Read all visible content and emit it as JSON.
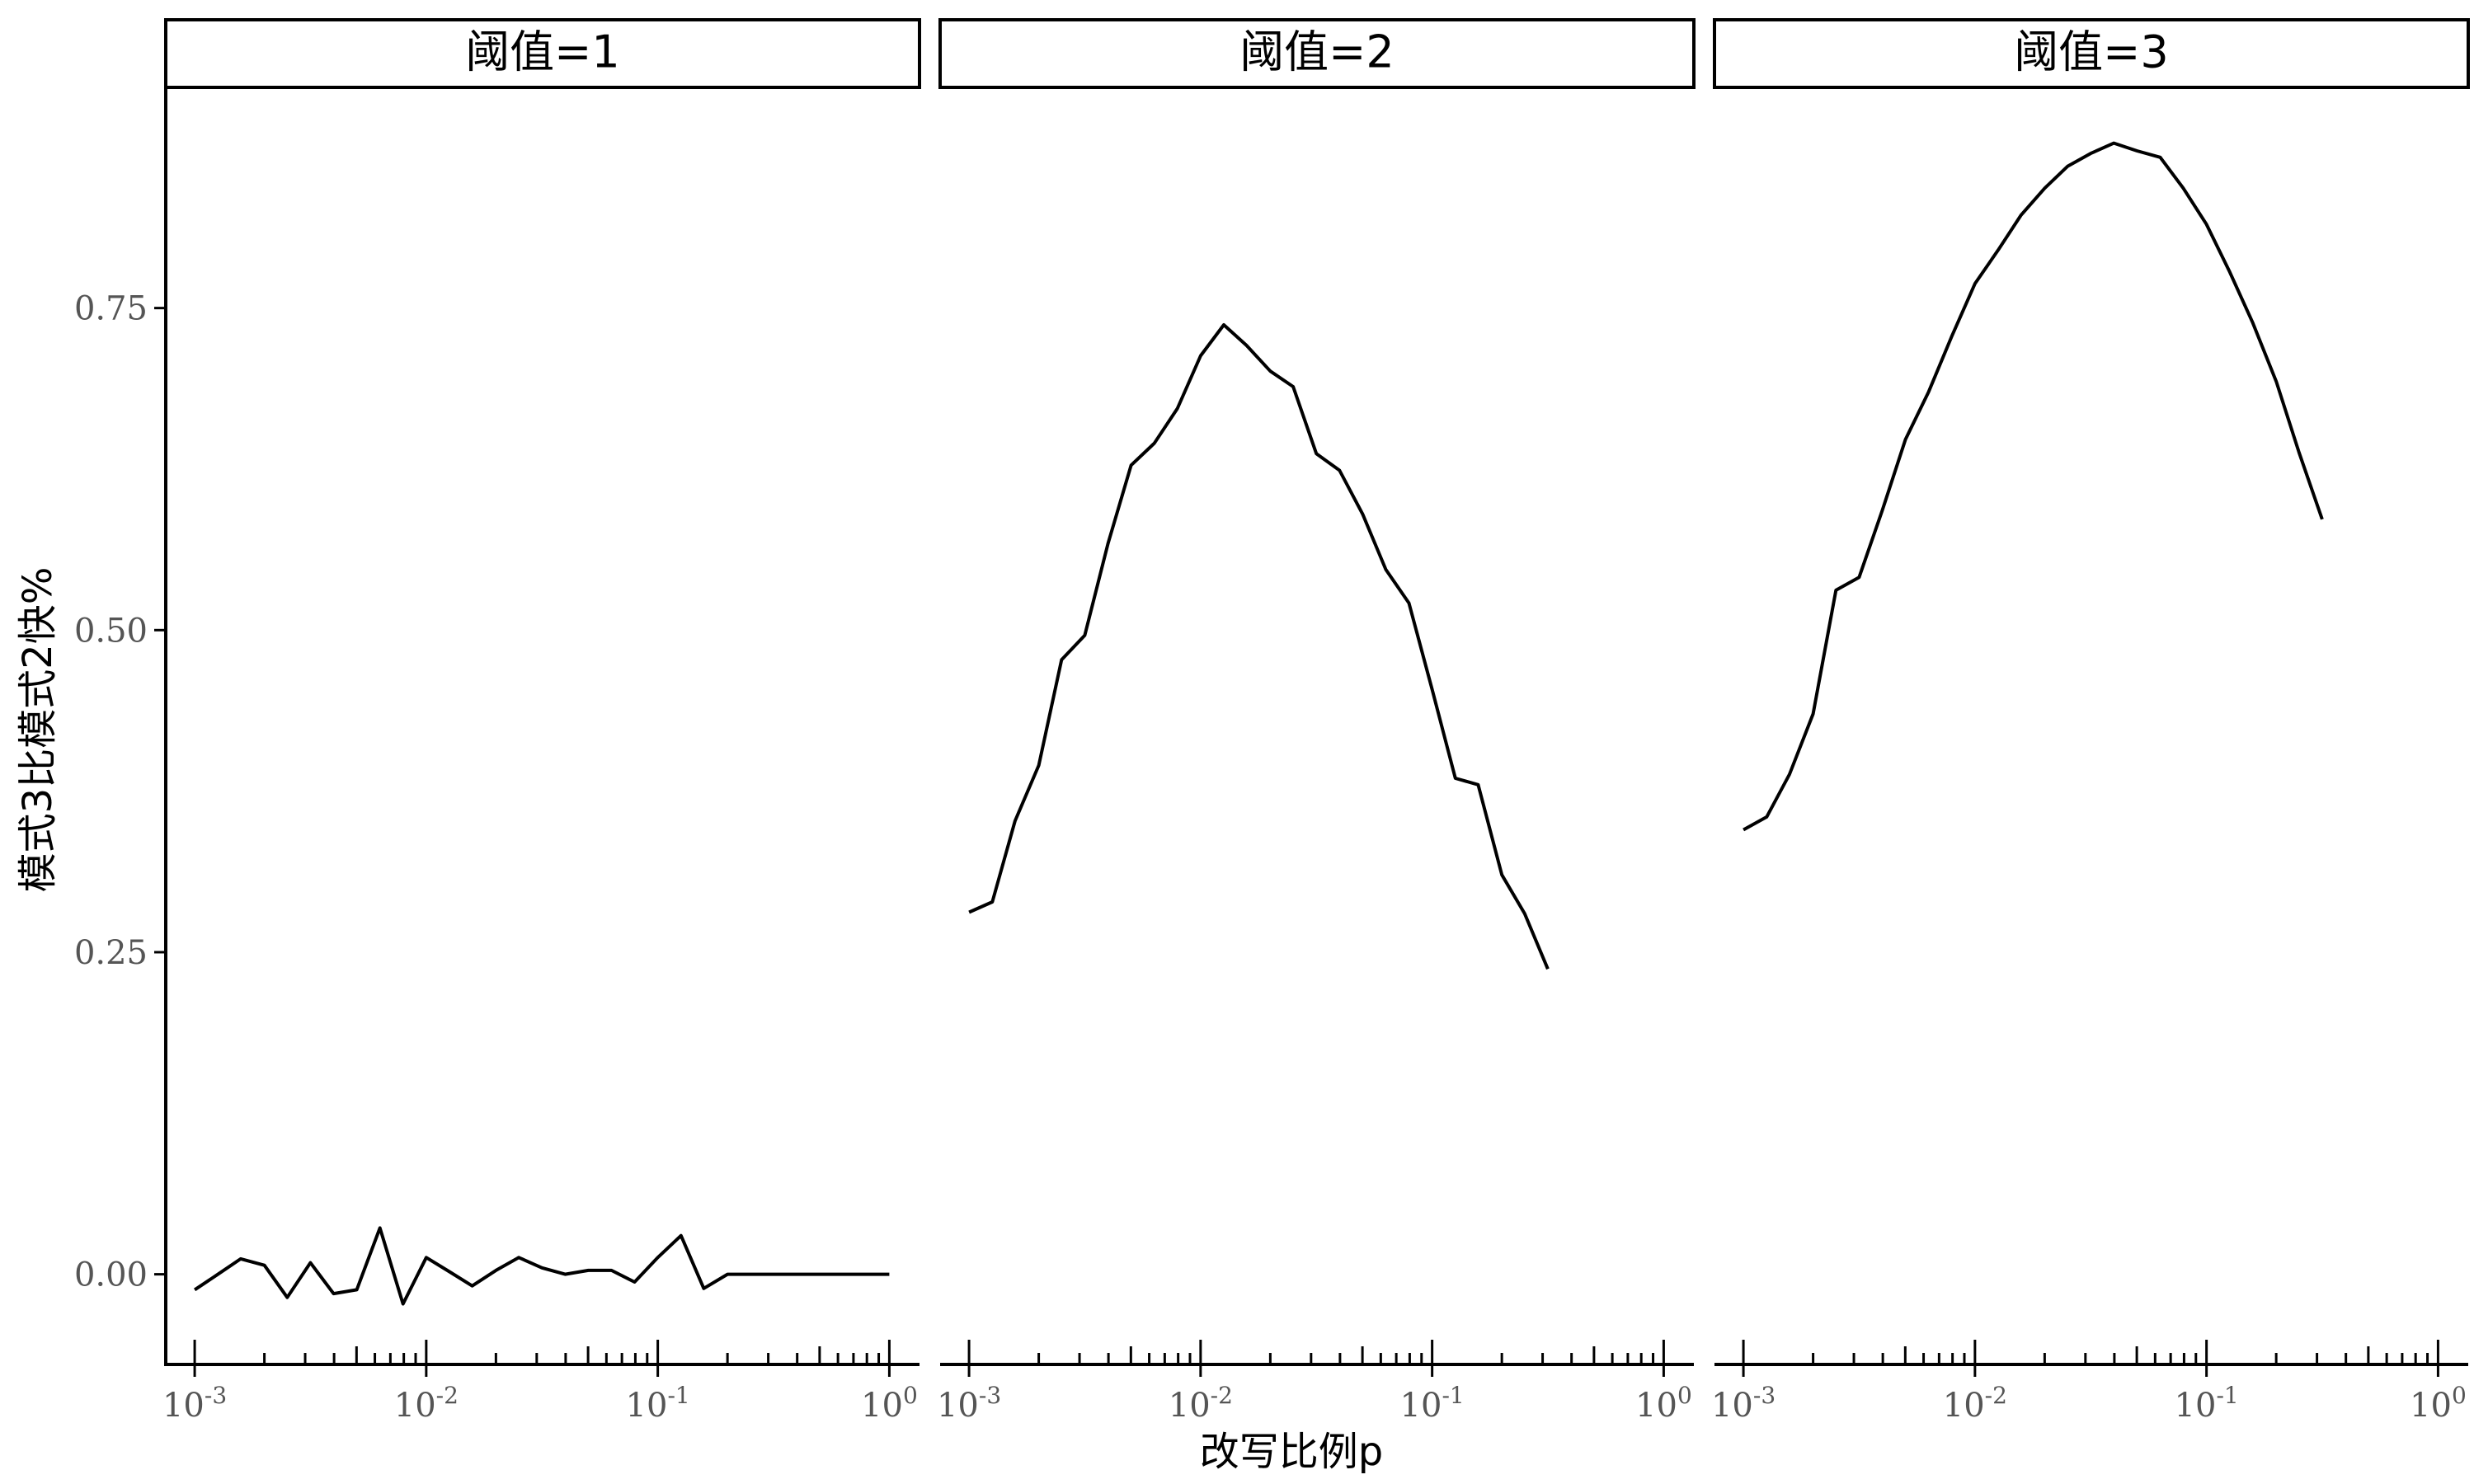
{
  "chart_data": {
    "type": "line",
    "title": "",
    "xlabel": "改写比例p",
    "ylabel": "模式3比模式2快%",
    "x_scale": "log10",
    "xlim": [
      0.00075,
      1.35
    ],
    "ylim": [
      -0.07,
      0.92
    ],
    "x_ticks": [
      0.001,
      0.01,
      0.1,
      1
    ],
    "x_tick_labels": [
      {
        "base": "10",
        "exp": "-3"
      },
      {
        "base": "10",
        "exp": "-2"
      },
      {
        "base": "10",
        "exp": "-1"
      },
      {
        "base": "10",
        "exp": "0"
      }
    ],
    "y_ticks": [
      0,
      0.25,
      0.5,
      0.75
    ],
    "y_tick_labels": [
      "0.00",
      "0.25",
      "0.50",
      "0.75"
    ],
    "grid": false,
    "legend": "none",
    "line_color": "#000000",
    "panels": [
      {
        "strip_label": "阈值=1",
        "x": [
          0.001,
          0.00126,
          0.00158,
          0.002,
          0.00251,
          0.00316,
          0.00398,
          0.00501,
          0.00631,
          0.00794,
          0.01,
          0.0126,
          0.0158,
          0.02,
          0.0251,
          0.0316,
          0.0398,
          0.0501,
          0.0631,
          0.0794,
          0.1,
          0.126,
          0.158,
          0.2,
          0.251,
          0.316,
          0.398,
          0.501,
          0.631,
          0.794,
          1.0
        ],
        "y": [
          -0.012,
          0.0,
          0.012,
          0.007,
          -0.018,
          0.009,
          -0.015,
          -0.012,
          0.036,
          -0.023,
          0.013,
          0.002,
          -0.009,
          0.003,
          0.013,
          0.005,
          0.0,
          0.003,
          0.003,
          -0.006,
          0.013,
          0.03,
          -0.011,
          0.0,
          0.0,
          0.0,
          0.0,
          0.0,
          0.0,
          0.0,
          0.0
        ]
      },
      {
        "strip_label": "阈值=2",
        "x": [
          0.001,
          0.00126,
          0.00158,
          0.002,
          0.00251,
          0.00316,
          0.00398,
          0.00501,
          0.00631,
          0.00794,
          0.01,
          0.0126,
          0.0158,
          0.02,
          0.0251,
          0.0316,
          0.0398,
          0.0501,
          0.0631,
          0.0794,
          0.1,
          0.126,
          0.158,
          0.2,
          0.251,
          0.316
        ],
        "y": [
          0.281,
          0.289,
          0.352,
          0.395,
          0.477,
          0.496,
          0.567,
          0.628,
          0.645,
          0.672,
          0.713,
          0.737,
          0.721,
          0.701,
          0.689,
          0.637,
          0.624,
          0.59,
          0.547,
          0.521,
          0.454,
          0.385,
          0.38,
          0.31,
          0.28,
          0.237
        ]
      },
      {
        "strip_label": "阈值=3",
        "x": [
          0.001,
          0.00126,
          0.00158,
          0.002,
          0.00251,
          0.00316,
          0.00398,
          0.00501,
          0.00631,
          0.00794,
          0.01,
          0.0126,
          0.0158,
          0.02,
          0.0251,
          0.0316,
          0.0398,
          0.0501,
          0.0631,
          0.0794,
          0.1,
          0.126,
          0.158,
          0.2,
          0.251,
          0.316
        ],
        "y": [
          0.345,
          0.355,
          0.388,
          0.435,
          0.531,
          0.541,
          0.593,
          0.648,
          0.685,
          0.728,
          0.769,
          0.795,
          0.822,
          0.843,
          0.86,
          0.87,
          0.878,
          0.872,
          0.867,
          0.843,
          0.815,
          0.778,
          0.739,
          0.693,
          0.638,
          0.586
        ]
      }
    ]
  }
}
